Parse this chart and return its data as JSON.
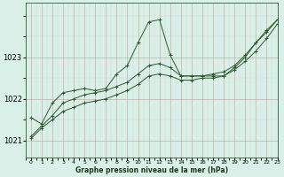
{
  "title": "Graphe pression niveau de la mer (hPa)",
  "bg_color": "#d8f0e8",
  "grid_color_major": "#cc9999",
  "line_color": "#2d5a2d",
  "marker_color": "#2d5a2d",
  "xlim": [
    -0.5,
    23
  ],
  "ylim": [
    1020.6,
    1024.3
  ],
  "yticks": [
    1021,
    1022,
    1023
  ],
  "xlabel_color": "#1a3a1a",
  "series": [
    {
      "x": [
        0,
        1,
        2,
        3,
        4,
        5,
        6,
        7,
        8,
        9,
        10,
        11,
        12,
        13,
        14,
        15,
        16,
        17,
        18,
        19,
        20,
        21,
        22,
        23
      ],
      "y": [
        1021.55,
        1021.4,
        1021.9,
        1022.15,
        1022.2,
        1022.25,
        1022.2,
        1022.25,
        1022.6,
        1022.8,
        1023.35,
        1023.85,
        1023.9,
        1023.05,
        1022.55,
        1022.55,
        1022.55,
        1022.55,
        1022.55,
        1022.75,
        1023.0,
        1023.35,
        1023.65,
        1023.9
      ]
    },
    {
      "x": [
        0,
        1,
        2,
        3,
        4,
        5,
        6,
        7,
        8,
        9,
        10,
        11,
        12,
        13,
        14,
        15,
        16,
        17,
        18,
        19,
        20,
        21,
        22,
        23
      ],
      "y": [
        1021.1,
        1021.35,
        1021.6,
        1021.9,
        1022.0,
        1022.1,
        1022.15,
        1022.2,
        1022.3,
        1022.4,
        1022.6,
        1022.8,
        1022.85,
        1022.75,
        1022.55,
        1022.55,
        1022.55,
        1022.6,
        1022.65,
        1022.8,
        1023.05,
        1023.35,
        1023.6,
        1023.9
      ]
    },
    {
      "x": [
        0,
        1,
        2,
        3,
        4,
        5,
        6,
        7,
        8,
        9,
        10,
        11,
        12,
        13,
        14,
        15,
        16,
        17,
        18,
        19,
        20,
        21,
        22,
        23
      ],
      "y": [
        1021.05,
        1021.3,
        1021.5,
        1021.7,
        1021.8,
        1021.9,
        1021.95,
        1022.0,
        1022.1,
        1022.2,
        1022.35,
        1022.55,
        1022.6,
        1022.55,
        1022.45,
        1022.45,
        1022.5,
        1022.5,
        1022.55,
        1022.7,
        1022.9,
        1023.15,
        1023.45,
        1023.8
      ]
    }
  ]
}
